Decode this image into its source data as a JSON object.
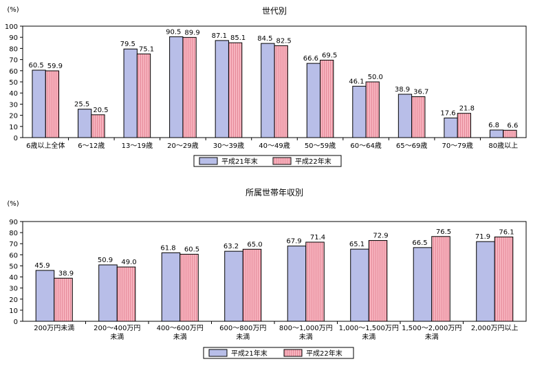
{
  "colors": {
    "series1": "#b8bee8",
    "series2": "#f7b3be",
    "stroke": "#000000",
    "grid": "#000000"
  },
  "chart_data": [
    {
      "type": "bar",
      "title": "世代別",
      "ylabel": "(%)",
      "ylim": [
        0,
        100
      ],
      "yticks": [
        0,
        10,
        20,
        30,
        40,
        50,
        60,
        70,
        80,
        90,
        100
      ],
      "grid": false,
      "legend_position": "bottom",
      "categories": [
        [
          "6歳以上全体"
        ],
        [
          "6～12歳"
        ],
        [
          "13～19歳"
        ],
        [
          "20～29歳"
        ],
        [
          "30～39歳"
        ],
        [
          "40～49歳"
        ],
        [
          "50～59歳"
        ],
        [
          "60～64歳"
        ],
        [
          "65～69歳"
        ],
        [
          "70～79歳"
        ],
        [
          "80歳以上"
        ]
      ],
      "series": [
        {
          "name": "平成21年末",
          "values": [
            60.5,
            25.5,
            79.5,
            90.5,
            87.1,
            84.5,
            66.6,
            46.1,
            38.9,
            17.6,
            6.8
          ]
        },
        {
          "name": "平成22年末",
          "values": [
            59.9,
            20.5,
            75.1,
            89.9,
            85.1,
            82.5,
            69.5,
            50.0,
            36.7,
            21.8,
            6.6
          ]
        }
      ]
    },
    {
      "type": "bar",
      "title": "所属世帯年収別",
      "ylabel": "(%)",
      "ylim": [
        0,
        90
      ],
      "yticks": [
        0,
        10,
        20,
        30,
        40,
        50,
        60,
        70,
        80,
        90
      ],
      "grid": false,
      "legend_position": "bottom",
      "categories": [
        [
          "200万円未満"
        ],
        [
          "200～400万円",
          "未満"
        ],
        [
          "400～600万円",
          "未満"
        ],
        [
          "600～800万円",
          "未満"
        ],
        [
          "800～1,000万円",
          "未満"
        ],
        [
          "1,000～1,500万円",
          "未満"
        ],
        [
          "1,500～2,000万円",
          "未満"
        ],
        [
          "2,000万円以上"
        ]
      ],
      "series": [
        {
          "name": "平成21年末",
          "values": [
            45.9,
            50.9,
            61.8,
            63.2,
            67.9,
            65.1,
            66.5,
            71.9
          ]
        },
        {
          "name": "平成22年末",
          "values": [
            38.9,
            49.0,
            60.5,
            65.0,
            71.4,
            72.9,
            76.5,
            76.1
          ]
        }
      ]
    }
  ]
}
